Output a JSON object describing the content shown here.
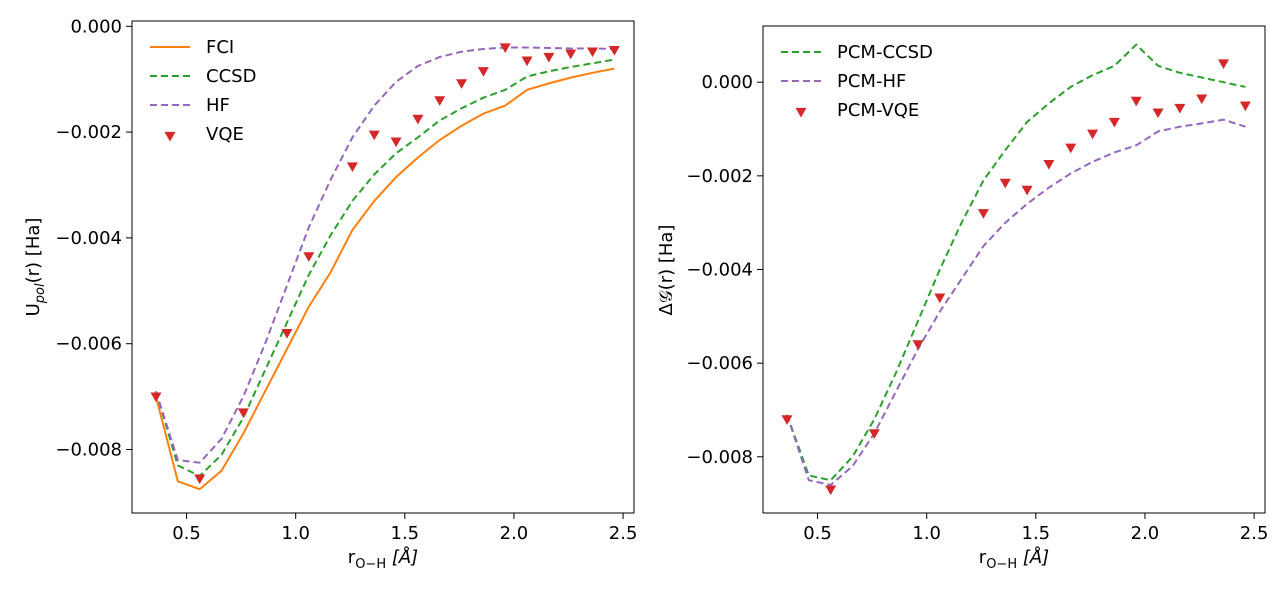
{
  "chart_data": [
    {
      "type": "line",
      "title": "",
      "xlabel_main": "r",
      "xlabel_sub": "O−H",
      "xlabel_unit": "[Å]",
      "ylabel_main": "U",
      "ylabel_sub": "pol",
      "ylabel_rest": "(r) [Ha]",
      "xlim": [
        0.25,
        2.55
      ],
      "ylim": [
        -0.0092,
        0.0001
      ],
      "xticks": [
        0.5,
        1.0,
        1.5,
        2.0,
        2.5
      ],
      "xtick_labels": [
        "0.5",
        "1.0",
        "1.5",
        "2.0",
        "2.5"
      ],
      "yticks": [
        -0.008,
        -0.006,
        -0.004,
        -0.002,
        0.0
      ],
      "ytick_labels": [
        "−0.008",
        "−0.006",
        "−0.004",
        "−0.002",
        "0.000"
      ],
      "legend_position": "top-left",
      "series": [
        {
          "name": "FCI",
          "style": "line",
          "color": "#ff7f0e",
          "dash": "none",
          "x": [
            0.36,
            0.46,
            0.56,
            0.66,
            0.76,
            0.86,
            0.96,
            1.06,
            1.16,
            1.26,
            1.36,
            1.46,
            1.56,
            1.66,
            1.76,
            1.86,
            1.96,
            2.06,
            2.16,
            2.26,
            2.36,
            2.46
          ],
          "y": [
            -0.007,
            -0.0086,
            -0.00875,
            -0.0084,
            -0.0077,
            -0.0069,
            -0.0061,
            -0.0053,
            -0.00465,
            -0.00385,
            -0.0033,
            -0.00285,
            -0.00248,
            -0.00215,
            -0.00188,
            -0.00165,
            -0.0015,
            -0.0012,
            -0.00108,
            -0.00097,
            -0.00088,
            -0.0008
          ]
        },
        {
          "name": "CCSD",
          "style": "line",
          "color": "#2ca02c",
          "dash": "7,4",
          "x": [
            0.36,
            0.46,
            0.56,
            0.66,
            0.76,
            0.86,
            0.96,
            1.06,
            1.16,
            1.26,
            1.36,
            1.46,
            1.56,
            1.66,
            1.76,
            1.86,
            1.96,
            2.06,
            2.16,
            2.26,
            2.36,
            2.46
          ],
          "y": [
            -0.0069,
            -0.0083,
            -0.0085,
            -0.0081,
            -0.0074,
            -0.0065,
            -0.0056,
            -0.0047,
            -0.00395,
            -0.0033,
            -0.0028,
            -0.0024,
            -0.0021,
            -0.00178,
            -0.00155,
            -0.00135,
            -0.0012,
            -0.00095,
            -0.00085,
            -0.00077,
            -0.0007,
            -0.00063
          ]
        },
        {
          "name": "HF",
          "style": "line",
          "color": "#9467bd",
          "dash": "7,4",
          "x": [
            0.36,
            0.46,
            0.56,
            0.66,
            0.76,
            0.86,
            0.96,
            1.06,
            1.16,
            1.26,
            1.36,
            1.46,
            1.56,
            1.66,
            1.76,
            1.86,
            1.96,
            2.06,
            2.16,
            2.26,
            2.36,
            2.46
          ],
          "y": [
            -0.0069,
            -0.0082,
            -0.00825,
            -0.0078,
            -0.007,
            -0.006,
            -0.0049,
            -0.0038,
            -0.0029,
            -0.0021,
            -0.0015,
            -0.00105,
            -0.00075,
            -0.00058,
            -0.00048,
            -0.00043,
            -0.0004,
            -0.0004,
            -0.00041,
            -0.00042,
            -0.00042,
            -0.00043
          ]
        },
        {
          "name": "VQE",
          "style": "marker",
          "color": "#d62728",
          "dash": "none",
          "x": [
            0.36,
            0.56,
            0.76,
            0.96,
            1.06,
            1.26,
            1.36,
            1.46,
            1.56,
            1.66,
            1.76,
            1.86,
            1.96,
            2.06,
            2.16,
            2.26,
            2.36,
            2.46
          ],
          "y": [
            -0.007,
            -0.00855,
            -0.0073,
            -0.0058,
            -0.00435,
            -0.00265,
            -0.00205,
            -0.00218,
            -0.00175,
            -0.0014,
            -0.00108,
            -0.00085,
            -0.0004,
            -0.00065,
            -0.00058,
            -0.00052,
            -0.00048,
            -0.00045
          ]
        }
      ]
    },
    {
      "type": "line",
      "title": "",
      "xlabel_main": "r",
      "xlabel_sub": "O−H",
      "xlabel_unit": "[Å]",
      "ylabel": "Δ𝒢(r) [Ha]",
      "xlim": [
        0.25,
        2.55
      ],
      "ylim": [
        -0.0092,
        0.0012
      ],
      "xticks": [
        0.5,
        1.0,
        1.5,
        2.0,
        2.5
      ],
      "xtick_labels": [
        "0.5",
        "1.0",
        "1.5",
        "2.0",
        "2.5"
      ],
      "yticks": [
        -0.008,
        -0.006,
        -0.004,
        -0.002,
        0.0
      ],
      "ytick_labels": [
        "−0.008",
        "−0.006",
        "−0.004",
        "−0.002",
        "0.000"
      ],
      "legend_position": "top-left",
      "series": [
        {
          "name": "PCM-CCSD",
          "style": "line",
          "color": "#2ca02c",
          "dash": "7,4",
          "x": [
            0.36,
            0.46,
            0.56,
            0.66,
            0.76,
            0.86,
            0.96,
            1.06,
            1.16,
            1.26,
            1.36,
            1.46,
            1.56,
            1.66,
            1.76,
            1.86,
            1.96,
            2.06,
            2.16,
            2.26,
            2.36,
            2.46
          ],
          "y": [
            -0.0071,
            -0.0084,
            -0.0085,
            -0.008,
            -0.0072,
            -0.0062,
            -0.0051,
            -0.004,
            -0.003,
            -0.0021,
            -0.00145,
            -0.00085,
            -0.00045,
            -0.0001,
            0.00015,
            0.00035,
            0.0008,
            0.00035,
            0.0002,
            0.0001,
            0.0,
            -0.0001
          ]
        },
        {
          "name": "PCM-HF",
          "style": "line",
          "color": "#9467bd",
          "dash": "7,4",
          "x": [
            0.36,
            0.46,
            0.56,
            0.66,
            0.76,
            0.86,
            0.96,
            1.06,
            1.16,
            1.26,
            1.36,
            1.46,
            1.56,
            1.66,
            1.76,
            1.86,
            1.96,
            2.06,
            2.16,
            2.26,
            2.36,
            2.46
          ],
          "y": [
            -0.0071,
            -0.0085,
            -0.0086,
            -0.0082,
            -0.0075,
            -0.0066,
            -0.0057,
            -0.0049,
            -0.0042,
            -0.0035,
            -0.003,
            -0.0026,
            -0.00225,
            -0.00195,
            -0.0017,
            -0.0015,
            -0.00135,
            -0.00105,
            -0.00095,
            -0.00088,
            -0.0008,
            -0.00095
          ]
        },
        {
          "name": "PCM-VQE",
          "style": "marker",
          "color": "#d62728",
          "dash": "none",
          "x": [
            0.36,
            0.56,
            0.76,
            0.96,
            1.06,
            1.26,
            1.36,
            1.46,
            1.56,
            1.66,
            1.76,
            1.86,
            1.96,
            2.06,
            2.16,
            2.26,
            2.36,
            2.46
          ],
          "y": [
            -0.0072,
            -0.0087,
            -0.0075,
            -0.0056,
            -0.0046,
            -0.0028,
            -0.00215,
            -0.0023,
            -0.00175,
            -0.0014,
            -0.0011,
            -0.00085,
            -0.0004,
            -0.00065,
            -0.00055,
            -0.00035,
            0.0004,
            -0.0005
          ]
        }
      ]
    }
  ]
}
